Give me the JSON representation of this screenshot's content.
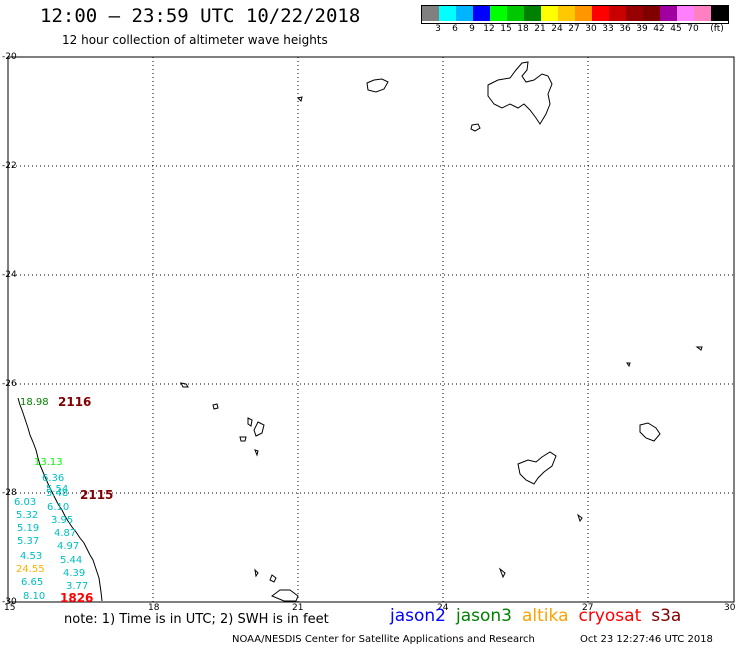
{
  "header": {
    "title": "12:00 – 23:59 UTC 10/22/2018",
    "subtitle": "12 hour collection of altimeter wave heights"
  },
  "scale": {
    "colors": [
      "#808080",
      "#00ffff",
      "#00b4ff",
      "#0000ff",
      "#00ff00",
      "#00c800",
      "#008000",
      "#ffff00",
      "#ffc800",
      "#ff9600",
      "#ff0000",
      "#c80000",
      "#960000",
      "#800000",
      "#a000a0",
      "#ff80ff",
      "#ff80c0",
      "#000000"
    ],
    "labels": [
      "3",
      "6",
      "9",
      "12",
      "15",
      "18",
      "21",
      "24",
      "27",
      "30",
      "33",
      "36",
      "39",
      "42",
      "45",
      "70"
    ],
    "unit": "(ft)"
  },
  "axes": {
    "lat_labels": [
      "-20",
      "-22",
      "-24",
      "-26",
      "-28",
      "-30"
    ],
    "lon_labels": [
      "15",
      "18",
      "21",
      "24",
      "27",
      "30"
    ]
  },
  "points": [
    {
      "text": "18.98",
      "color": "#008000"
    },
    {
      "text": "13.13",
      "color": "#00ff00"
    },
    {
      "text": "6.36",
      "color": "#00c0c0"
    },
    {
      "text": "5.54",
      "color": "#00c0c0"
    },
    {
      "text": "5.48",
      "color": "#00c0c0"
    },
    {
      "text": "6.03",
      "color": "#00c0c0"
    },
    {
      "text": "6.10",
      "color": "#00c0c0"
    },
    {
      "text": "5.32",
      "color": "#00c0c0"
    },
    {
      "text": "3.95",
      "color": "#00c0c0"
    },
    {
      "text": "5.19",
      "color": "#00c0c0"
    },
    {
      "text": "4.87",
      "color": "#00c0c0"
    },
    {
      "text": "5.37",
      "color": "#00c0c0"
    },
    {
      "text": "4.97",
      "color": "#00c0c0"
    },
    {
      "text": "4.53",
      "color": "#00c0c0"
    },
    {
      "text": "5.44",
      "color": "#00c0c0"
    },
    {
      "text": "24.55",
      "color": "#ffb000"
    },
    {
      "text": "4.39",
      "color": "#00c0c0"
    },
    {
      "text": "6.65",
      "color": "#00c0c0"
    },
    {
      "text": "3.77",
      "color": "#00c0c0"
    },
    {
      "text": "8.10",
      "color": "#00c0c0"
    }
  ],
  "times": [
    {
      "text": "2116",
      "color": "#800000"
    },
    {
      "text": "2115",
      "color": "#800000"
    },
    {
      "text": "1826",
      "color": "#ff0000"
    }
  ],
  "footer": {
    "note": "note: 1) Time is in UTC; 2) SWH is in feet",
    "satellites": [
      {
        "name": "jason2",
        "color": "#0000ff"
      },
      {
        "name": "jason3",
        "color": "#008000"
      },
      {
        "name": "altika",
        "color": "#ffa000"
      },
      {
        "name": "cryosat",
        "color": "#ff0000"
      },
      {
        "name": "s3a",
        "color": "#800000"
      }
    ],
    "credit": "NOAA/NESDIS Center for Satellite Applications and Research",
    "timestamp": "Oct 23 12:27:46 UTC 2018"
  }
}
